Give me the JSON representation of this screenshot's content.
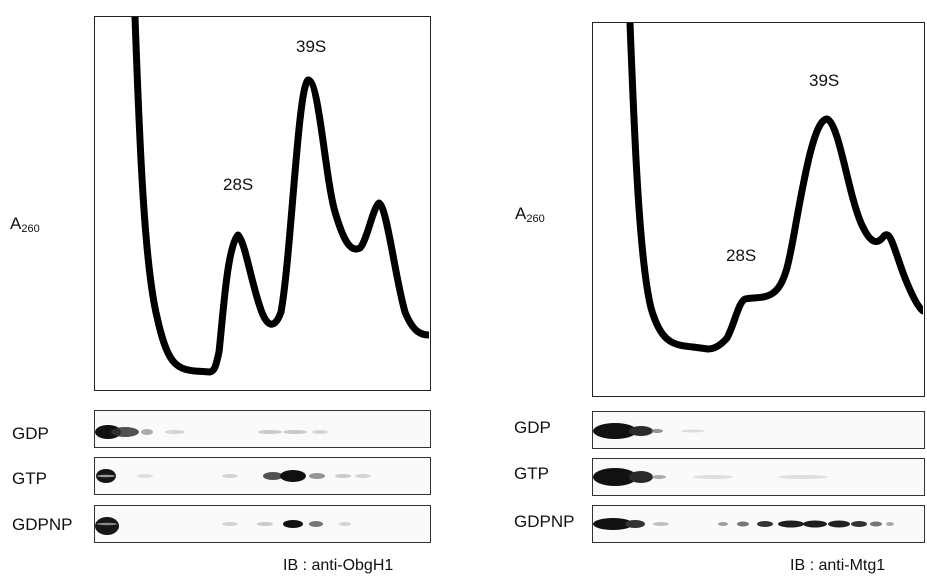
{
  "panels": [
    {
      "ylabel_main": "A",
      "ylabel_sub": "260",
      "peak_labels": [
        "28S",
        "39S"
      ],
      "blot_rows": [
        "GDP",
        "GTP",
        "GDPNP"
      ],
      "ib_label": "IB : anti-ObgH1"
    },
    {
      "ylabel_main": "A",
      "ylabel_sub": "260",
      "peak_labels": [
        "28S",
        "39S"
      ],
      "blot_rows": [
        "GDP",
        "GTP",
        "GDPNP"
      ],
      "ib_label": "IB : anti-Mtg1"
    }
  ]
}
